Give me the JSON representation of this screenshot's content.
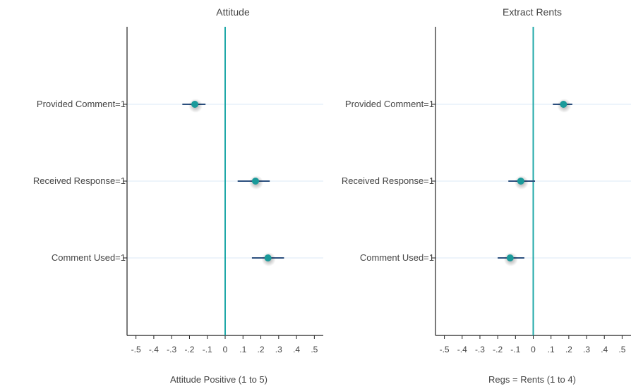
{
  "chart_data": [
    {
      "type": "scatter",
      "title": "Attitude",
      "xlabel": "Attitude Positive (1 to 5)",
      "ylabel": "",
      "xlim": [
        -0.55,
        0.55
      ],
      "xticks": [
        -0.5,
        -0.4,
        -0.3,
        -0.2,
        -0.1,
        0,
        0.1,
        0.2,
        0.3,
        0.4,
        0.5
      ],
      "xtick_labels": [
        "-.5",
        "-.4",
        "-.3",
        "-.2",
        "-.1",
        "0",
        ".1",
        ".2",
        ".3",
        ".4",
        ".5"
      ],
      "categories": [
        "Provided Comment=1",
        "Received Response=1",
        "Comment Used=1"
      ],
      "estimates": [
        -0.17,
        0.17,
        0.24
      ],
      "ci_low": [
        -0.24,
        0.07,
        0.15
      ],
      "ci_high": [
        -0.11,
        0.25,
        0.33
      ],
      "reference_line": 0,
      "grid": false,
      "colors": {
        "point": "#1a9a9a",
        "ci": "#2b4f7e",
        "zero_line": "#1fa8a8",
        "row_line": "#dbe9f7"
      }
    },
    {
      "type": "scatter",
      "title": "Extract Rents",
      "xlabel": "Regs = Rents (1 to 4)",
      "ylabel": "",
      "xlim": [
        -0.55,
        0.55
      ],
      "xticks": [
        -0.5,
        -0.4,
        -0.3,
        -0.2,
        -0.1,
        0,
        0.1,
        0.2,
        0.3,
        0.4,
        0.5
      ],
      "xtick_labels": [
        "-.5",
        "-.4",
        "-.3",
        "-.2",
        "-.1",
        "0",
        ".1",
        ".2",
        ".3",
        ".4",
        ".5"
      ],
      "categories": [
        "Provided Comment=1",
        "Received Response=1",
        "Comment Used=1"
      ],
      "estimates": [
        0.17,
        -0.07,
        -0.13
      ],
      "ci_low": [
        0.11,
        -0.14,
        -0.2
      ],
      "ci_high": [
        0.22,
        0.01,
        -0.05
      ],
      "reference_line": 0,
      "grid": false,
      "colors": {
        "point": "#1a9a9a",
        "ci": "#2b4f7e",
        "zero_line": "#1fa8a8",
        "row_line": "#dbe9f7"
      }
    }
  ]
}
